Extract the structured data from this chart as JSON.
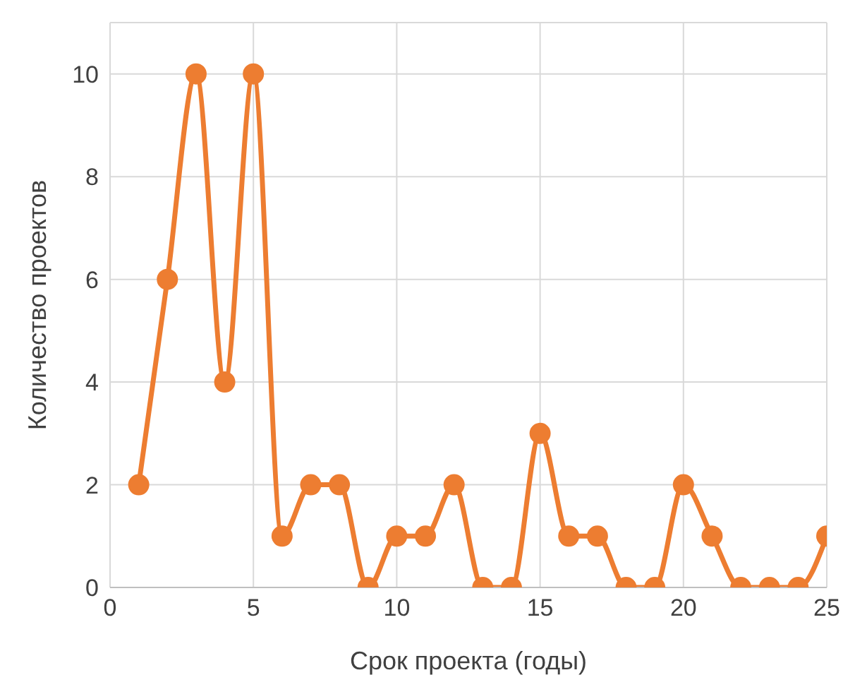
{
  "chart_data": {
    "type": "line",
    "xlabel": "Срок проекта (годы)",
    "ylabel": "Количество проектов",
    "x": [
      1,
      2,
      3,
      4,
      5,
      6,
      7,
      8,
      9,
      10,
      11,
      12,
      13,
      14,
      15,
      16,
      17,
      18,
      19,
      20,
      21,
      22,
      23,
      24,
      25
    ],
    "series": [
      {
        "color": "#ed7d31",
        "values": [
          2,
          6,
          10,
          4,
          10,
          1,
          2,
          2,
          0,
          1,
          1,
          2,
          0,
          0,
          3,
          1,
          1,
          0,
          0,
          2,
          1,
          0,
          0,
          0,
          1
        ]
      }
    ],
    "xlim": [
      0,
      25
    ],
    "xticks": [
      0,
      5,
      10,
      15,
      20,
      25
    ],
    "ylim": [
      0,
      11
    ],
    "yticks": [
      0,
      2,
      4,
      6,
      8,
      10
    ],
    "grid": true,
    "legend": false,
    "marker": "circle",
    "line_style": "solid"
  }
}
